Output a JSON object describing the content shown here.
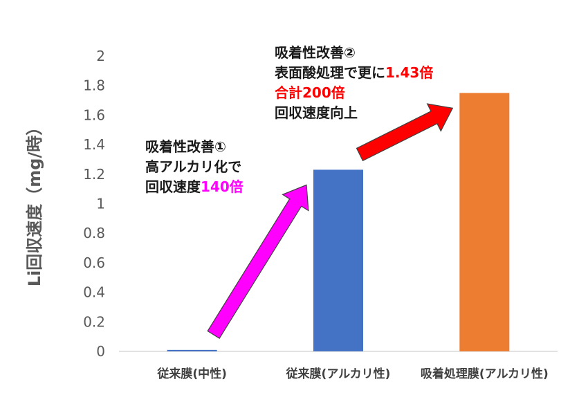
{
  "chart_data": {
    "type": "bar",
    "title": "",
    "xlabel": "",
    "ylabel": "Li回収速度（mg/時）",
    "ylim": [
      0,
      2
    ],
    "yticks": [
      "0",
      "0.2",
      "0.4",
      "0.6",
      "0.8",
      "1",
      "1.2",
      "1.4",
      "1.6",
      "1.8",
      "2"
    ],
    "categories": [
      "従来膜(中性)",
      "従来膜(アルカリ性)",
      "吸着処理膜(アルカリ性)"
    ],
    "values": [
      0.01,
      1.23,
      1.75
    ],
    "bar_colors": [
      "#4472c4",
      "#4472c4",
      "#ed7d31"
    ],
    "grid": false,
    "legend": "none",
    "annotations": [
      {
        "lines": [
          {
            "text": "吸着性改善①"
          },
          {
            "text": "高アルカリ化で"
          },
          {
            "text": "回収速度",
            "highlight": "140倍",
            "highlight_color": "#ff00ff"
          }
        ]
      },
      {
        "lines": [
          {
            "text": "吸着性改善②"
          },
          {
            "text": "表面酸処理で更に",
            "highlight": "1.43倍",
            "highlight_color": "#ff0000"
          },
          {
            "text": "",
            "highlight": "合計200倍",
            "highlight_color": "#ff0000"
          },
          {
            "text": "回収速度向上"
          }
        ]
      }
    ],
    "arrows": [
      {
        "from_category": 0,
        "to_category": 1,
        "color": "#ff00ff"
      },
      {
        "from_category": 1,
        "to_category": 2,
        "color": "#ff0000"
      }
    ]
  }
}
